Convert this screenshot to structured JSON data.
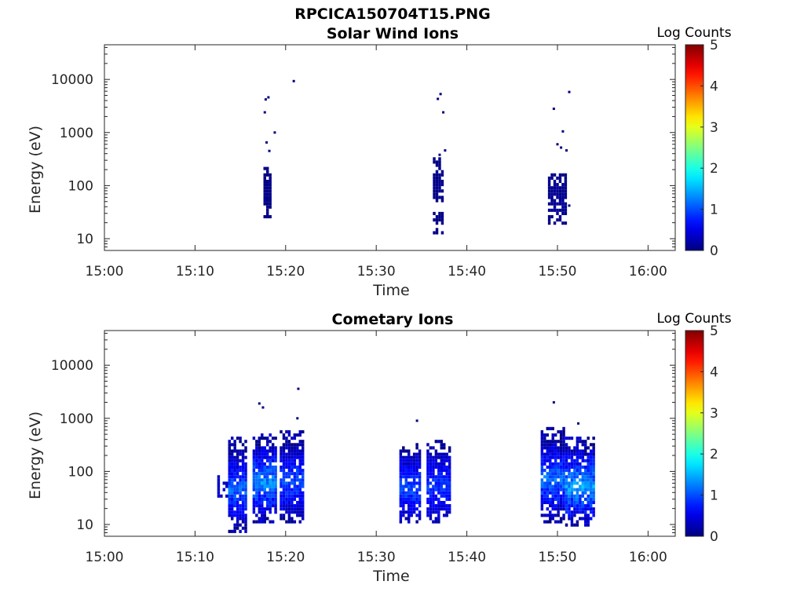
{
  "figure_title": "RPCICA150704T15.PNG",
  "chart_data": [
    {
      "type": "heatmap",
      "title": "Solar Wind Ions",
      "xlabel": "Time",
      "ylabel": "Energy (eV)",
      "x_unit": "minutes after 15:00",
      "xlim": [
        0,
        63
      ],
      "ylim": [
        6,
        45000
      ],
      "yscale": "log",
      "x_ticks": [
        0,
        10,
        20,
        30,
        40,
        50,
        60
      ],
      "x_tick_labels": [
        "15:00",
        "15:10",
        "15:20",
        "15:30",
        "15:40",
        "15:50",
        "16:00"
      ],
      "y_ticks": [
        10,
        100,
        1000,
        10000
      ],
      "y_tick_labels": [
        "10",
        "100",
        "1000",
        "10000"
      ],
      "colorbar": {
        "label": "Log Counts",
        "range": [
          0,
          5
        ],
        "ticks": [
          0,
          1,
          2,
          3,
          4,
          5
        ],
        "tick_labels": [
          "0",
          "1",
          "2",
          "3",
          "4",
          "5"
        ],
        "colormap": "jet"
      },
      "time_bin_width": 0.3,
      "blobs": [
        {
          "t": [
            17.7,
            18.0,
            18.3
          ],
          "e": [
            [
              20,
              220
            ]
          ],
          "v": 0.05
        },
        {
          "t": [
            36.4,
            36.7,
            37.0,
            37.3
          ],
          "e": [
            [
              12,
              30
            ],
            [
              40,
              350
            ]
          ],
          "v": 0.05
        },
        {
          "t": [
            49.1,
            49.4,
            49.7,
            50.0,
            50.3,
            50.6,
            50.9
          ],
          "e": [
            [
              18,
              170
            ]
          ],
          "v": 0.1
        }
      ],
      "points": [
        {
          "t": 17.8,
          "e": 4200,
          "v": 0
        },
        {
          "t": 18.1,
          "e": 4600,
          "v": 0
        },
        {
          "t": 17.7,
          "e": 2400,
          "v": 0
        },
        {
          "t": 18.8,
          "e": 1000,
          "v": 0
        },
        {
          "t": 17.9,
          "e": 650,
          "v": 0
        },
        {
          "t": 18.2,
          "e": 450,
          "v": 0
        },
        {
          "t": 20.9,
          "e": 9300,
          "v": 0
        },
        {
          "t": 36.8,
          "e": 4300,
          "v": 0
        },
        {
          "t": 37.1,
          "e": 5300,
          "v": 0
        },
        {
          "t": 37.4,
          "e": 2400,
          "v": 0
        },
        {
          "t": 37.6,
          "e": 460,
          "v": 0
        },
        {
          "t": 37.0,
          "e": 380,
          "v": 0
        },
        {
          "t": 49.6,
          "e": 2800,
          "v": 0
        },
        {
          "t": 51.3,
          "e": 5800,
          "v": 0
        },
        {
          "t": 50.6,
          "e": 1050,
          "v": 0
        },
        {
          "t": 50.0,
          "e": 600,
          "v": 0
        },
        {
          "t": 50.4,
          "e": 520,
          "v": 0
        },
        {
          "t": 51.0,
          "e": 460,
          "v": 0
        },
        {
          "t": 51.3,
          "e": 42,
          "v": 0
        }
      ]
    },
    {
      "type": "heatmap",
      "title": "Cometary Ions",
      "xlabel": "Time",
      "ylabel": "Energy (eV)",
      "x_unit": "minutes after 15:00",
      "xlim": [
        0,
        63
      ],
      "ylim": [
        6,
        45000
      ],
      "yscale": "log",
      "x_ticks": [
        0,
        10,
        20,
        30,
        40,
        50,
        60
      ],
      "x_tick_labels": [
        "15:00",
        "15:10",
        "15:20",
        "15:30",
        "15:40",
        "15:50",
        "16:00"
      ],
      "y_ticks": [
        10,
        100,
        1000,
        10000
      ],
      "y_tick_labels": [
        "10",
        "100",
        "1000",
        "10000"
      ],
      "colorbar": {
        "label": "Log Counts",
        "range": [
          0,
          5
        ],
        "ticks": [
          0,
          1,
          2,
          3,
          4,
          5
        ],
        "tick_labels": [
          "0",
          "1",
          "2",
          "3",
          "4",
          "5"
        ],
        "colormap": "jet"
      },
      "time_bin_width": 0.3,
      "blobs": [
        {
          "t": [
            12.6,
            12.9,
            13.2,
            13.5
          ],
          "e": [
            [
              30,
              90
            ]
          ],
          "v": 0.4
        },
        {
          "t": [
            13.8,
            14.1,
            14.4,
            14.7,
            15.0,
            15.3,
            15.6
          ],
          "e": [
            [
              7,
              450
            ]
          ],
          "v": 1.1
        },
        {
          "t": [
            16.5,
            16.8,
            17.1,
            17.4,
            17.7,
            18.0,
            18.3,
            18.6,
            18.9
          ],
          "e": [
            [
              11,
              550
            ]
          ],
          "v": 1.3
        },
        {
          "t": [
            19.5,
            19.8,
            20.1,
            20.4,
            20.7,
            21.0,
            21.3,
            21.6,
            21.9
          ],
          "e": [
            [
              10,
              600
            ]
          ],
          "v": 1.0
        },
        {
          "t": [
            32.7,
            33.0,
            33.3,
            33.6,
            33.9,
            34.2,
            34.5,
            34.8
          ],
          "e": [
            [
              10,
              350
            ]
          ],
          "v": 1.0
        },
        {
          "t": [
            35.7,
            36.0,
            36.3,
            36.6,
            36.9,
            37.2,
            37.5,
            37.8,
            38.1
          ],
          "e": [
            [
              10,
              420
            ]
          ],
          "v": 0.9
        },
        {
          "t": [
            48.3,
            48.6,
            48.9,
            49.2,
            49.5,
            49.8,
            50.1,
            50.4,
            50.7
          ],
          "e": [
            [
              11,
              700
            ]
          ],
          "v": 1.2
        },
        {
          "t": [
            51.0,
            51.3,
            51.6,
            51.9,
            52.2,
            52.5,
            52.8,
            53.1,
            53.4,
            53.7,
            54.0
          ],
          "e": [
            [
              9,
              450
            ]
          ],
          "v": 1.4
        }
      ],
      "points": [
        {
          "t": 17.1,
          "e": 1900,
          "v": 0
        },
        {
          "t": 17.5,
          "e": 1600,
          "v": 0
        },
        {
          "t": 21.4,
          "e": 3600,
          "v": 0
        },
        {
          "t": 21.3,
          "e": 1000,
          "v": 0
        },
        {
          "t": 34.5,
          "e": 900,
          "v": 0
        },
        {
          "t": 49.6,
          "e": 2000,
          "v": 0
        },
        {
          "t": 52.3,
          "e": 800,
          "v": 0
        }
      ]
    }
  ]
}
